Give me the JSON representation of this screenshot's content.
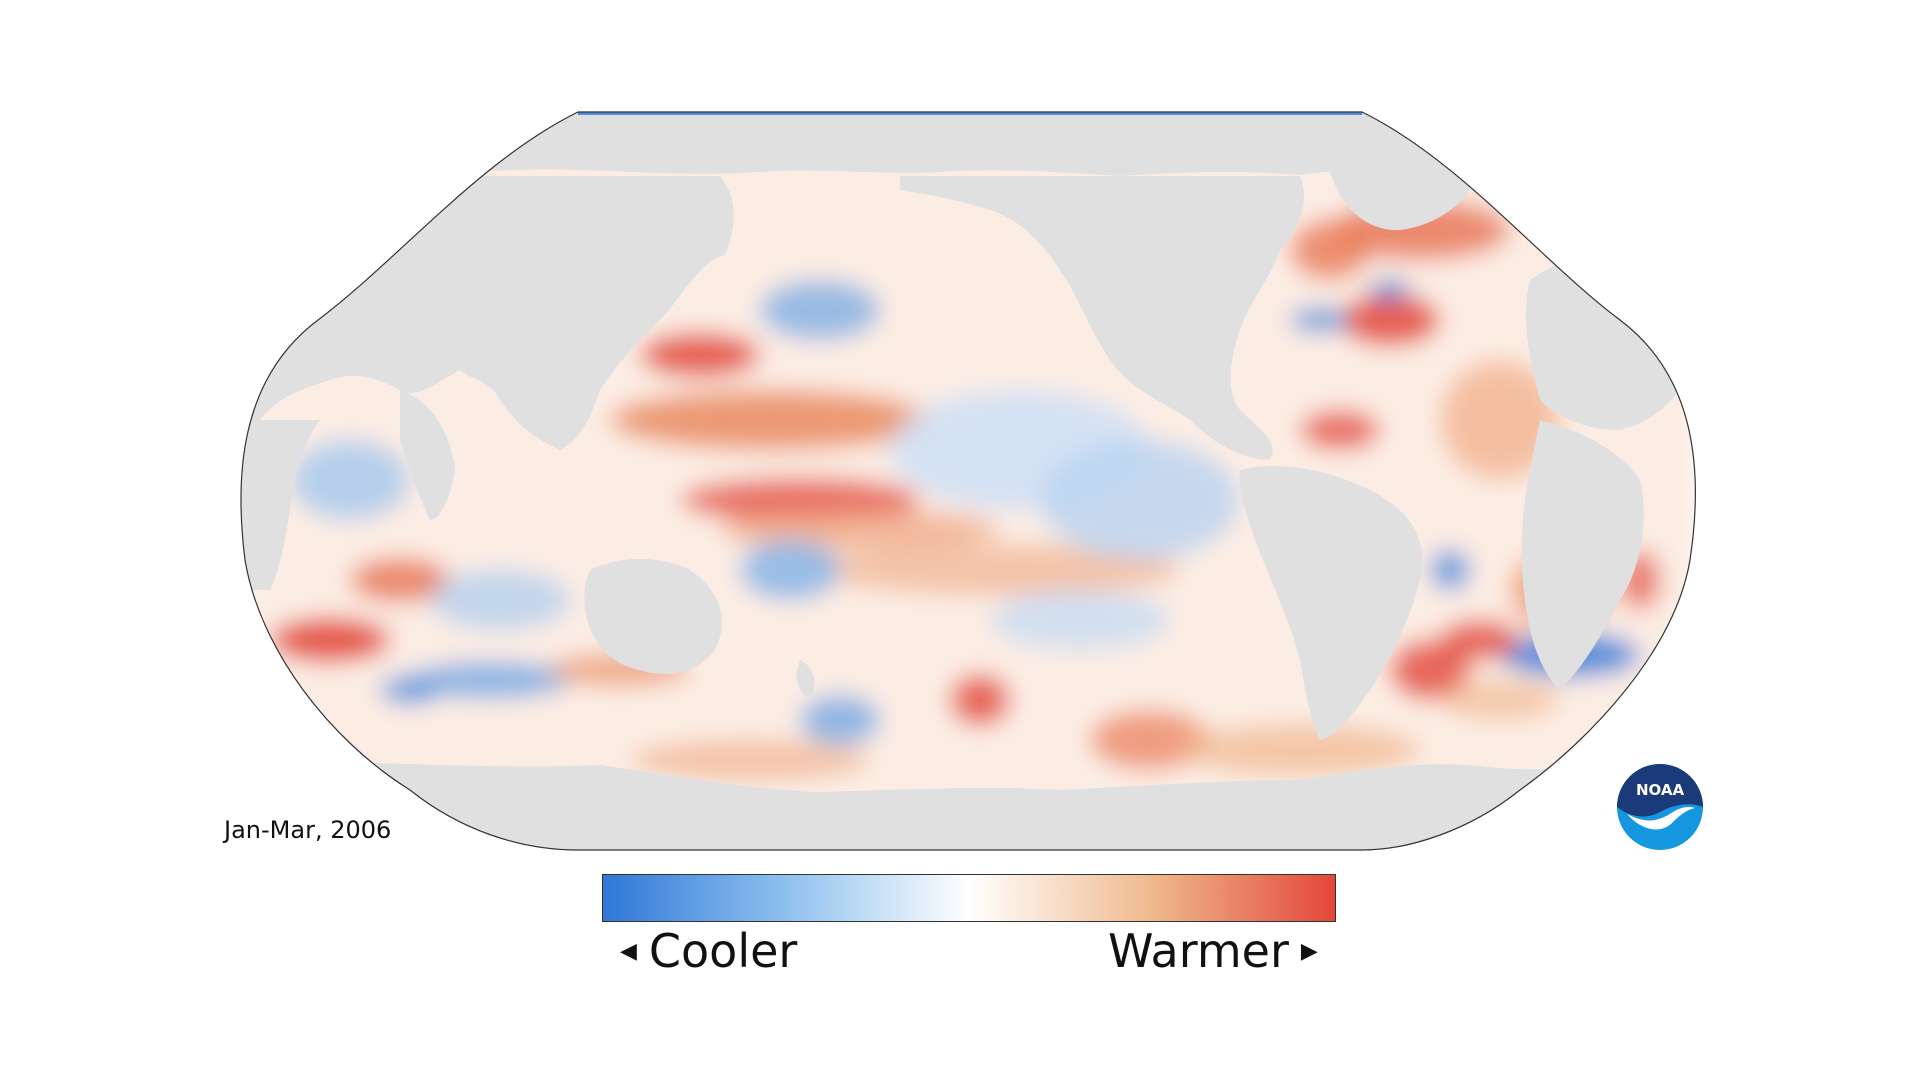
{
  "map": {
    "projection": "Robinson",
    "center_longitude": "Pacific-centered",
    "ocean_base_color": "#ffffff",
    "land_color": "#e0e0e0",
    "period_label": "Jan-Mar, 2006"
  },
  "legend": {
    "low_label": "Cooler",
    "high_label": "Warmer",
    "low_arrow": "◀",
    "high_arrow": "▶",
    "colors": [
      "#2f78d8",
      "#8fc1ee",
      "#ffffff",
      "#efb98d",
      "#e3473a"
    ]
  },
  "logo": {
    "text": "NOAA",
    "colors": {
      "top": "#1a3a7a",
      "bottom": "#1796e0",
      "bird": "#ffffff"
    }
  }
}
